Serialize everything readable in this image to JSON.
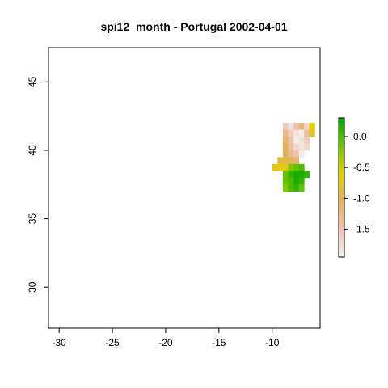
{
  "chart_data": {
    "type": "heatmap",
    "title": "spi12_month - Portugal 2002-04-01",
    "xlabel": "",
    "ylabel": "",
    "xlim": [
      -31.0,
      -5.5
    ],
    "ylim": [
      27.0,
      47.5
    ],
    "x_ticks": [
      -30,
      -25,
      -20,
      -15,
      -10
    ],
    "x_tick_labels": [
      "-30",
      "-25",
      "-20",
      "-15",
      "-10"
    ],
    "y_ticks": [
      30,
      35,
      40,
      45
    ],
    "y_tick_labels": [
      "30",
      "35",
      "40",
      "45"
    ],
    "grid": false,
    "legend_placement": "right",
    "colorbar": {
      "min": -1.95,
      "max": 0.3,
      "ticks": [
        0.0,
        -0.5,
        -1.0,
        -1.5
      ],
      "tick_labels": [
        "0.0",
        "-0.5",
        "-1.0",
        "-1.5"
      ],
      "colors": [
        {
          "value": -1.95,
          "color": "#f2f2f2"
        },
        {
          "value": -1.5,
          "color": "#eec1b1"
        },
        {
          "value": -1.0,
          "color": "#e2b25a"
        },
        {
          "value": -0.6,
          "color": "#e1d100"
        },
        {
          "value": -0.2,
          "color": "#7fc800"
        },
        {
          "value": 0.3,
          "color": "#00a600"
        }
      ]
    },
    "cell_size": 0.5,
    "cells": [
      {
        "row": 41.75,
        "start": -8.75,
        "values": [
          -1.6,
          -1.8,
          -1.5,
          -1.2,
          -1.7,
          -0.6
        ]
      },
      {
        "row": 41.25,
        "start": -8.75,
        "values": [
          -1.3,
          -1.6,
          -1.8,
          -1.9,
          -1.4,
          -0.8
        ]
      },
      {
        "row": 40.75,
        "start": -8.75,
        "values": [
          -1.1,
          -1.5,
          -1.9,
          -1.8,
          -1.6
        ]
      },
      {
        "row": 40.25,
        "start": -8.75,
        "values": [
          -1.0,
          -1.4,
          -1.7,
          -1.8,
          -1.7
        ]
      },
      {
        "row": 39.75,
        "start": -8.75,
        "values": [
          -1.0,
          -1.3,
          -1.5,
          -1.9
        ]
      },
      {
        "row": 39.25,
        "start": -9.25,
        "values": [
          -0.9,
          -0.9,
          -1.0,
          -1.1
        ]
      },
      {
        "row": 38.75,
        "start": -9.75,
        "values": [
          -0.7,
          -0.7,
          -0.7,
          -0.2,
          -0.1,
          0.0
        ]
      },
      {
        "row": 38.25,
        "start": -8.75,
        "values": [
          -0.1,
          0.1,
          0.2,
          0.2,
          0.1
        ]
      },
      {
        "row": 37.75,
        "start": -8.75,
        "values": [
          -0.1,
          0.0,
          0.2,
          0.1
        ]
      },
      {
        "row": 37.25,
        "start": -8.75,
        "values": [
          -0.2,
          0.0,
          0.1,
          -0.1
        ]
      }
    ]
  }
}
